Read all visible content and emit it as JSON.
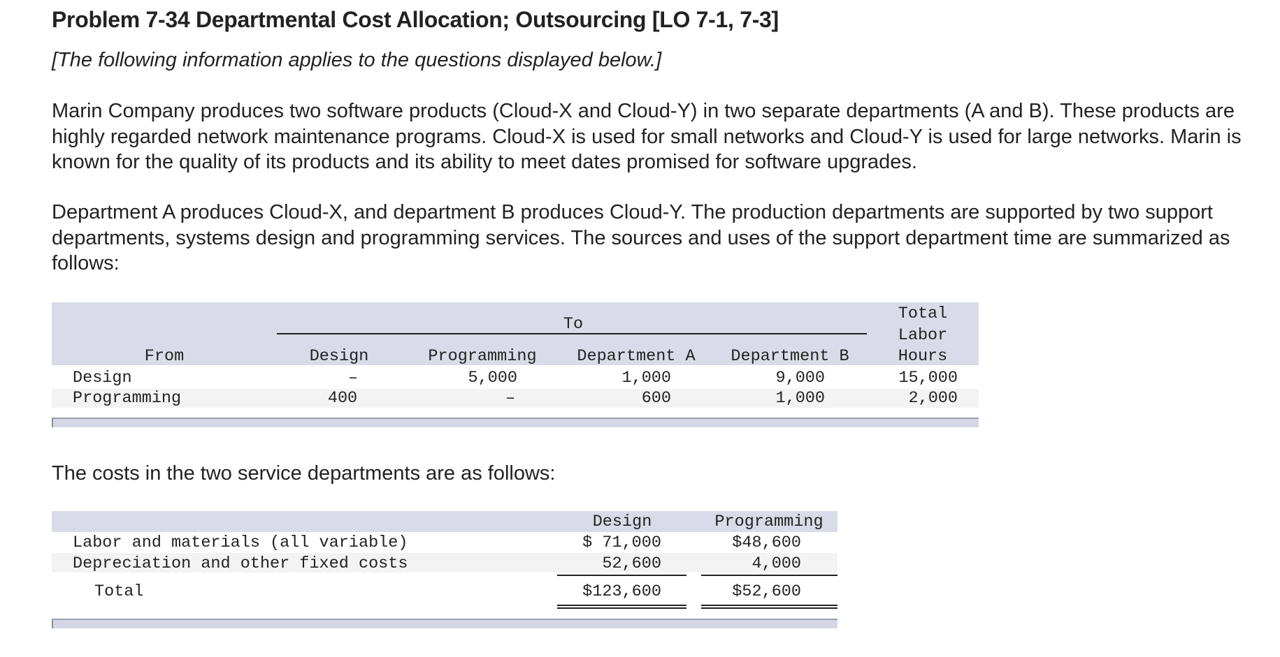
{
  "header": {
    "title": "Problem 7-34 Departmental Cost Allocation; Outsourcing [LO 7-1, 7-3]",
    "subtitle": "[The following information applies to the questions displayed below.]"
  },
  "body": {
    "para1": "Marin Company produces two software products (Cloud-X and Cloud-Y) in two separate departments (A and B). These products are highly regarded network maintenance programs. Cloud-X is used for small networks and Cloud-Y is used for large networks. Marin is known for the quality of its products and its ability to meet dates promised for software upgrades.",
    "para2": "Department A produces Cloud-X, and department B produces Cloud-Y. The production departments are supported by two support departments, systems design and programming services. The sources and uses of the support department time are summarized as follows:",
    "para3": "The costs in the two service departments are as follows:"
  },
  "hours_table": {
    "to_label": "To",
    "from_label": "From",
    "total_l1": "Total",
    "total_l2": "Labor",
    "total_l3": "Hours",
    "col_design": "Design",
    "col_programming": "Programming",
    "col_dept_a": "Department A",
    "col_dept_b": "Department B",
    "rows": [
      {
        "from": "Design",
        "design": "–",
        "programming": "5,000",
        "dept_a": "1,000",
        "dept_b": "9,000",
        "total": "15,000"
      },
      {
        "from": "Programming",
        "design": "400",
        "programming": "–",
        "dept_a": "600",
        "dept_b": "1,000",
        "total": "2,000"
      }
    ]
  },
  "cost_table": {
    "col_design": "Design",
    "col_programming": "Programming",
    "rows": [
      {
        "label": "Labor and materials (all variable)",
        "design": "$ 71,000",
        "programming": "$48,600"
      },
      {
        "label": "Depreciation and other fixed costs",
        "design": "52,600",
        "programming": "4,000"
      }
    ],
    "total": {
      "label": "Total",
      "design": "$123,600",
      "programming": "$52,600"
    }
  }
}
